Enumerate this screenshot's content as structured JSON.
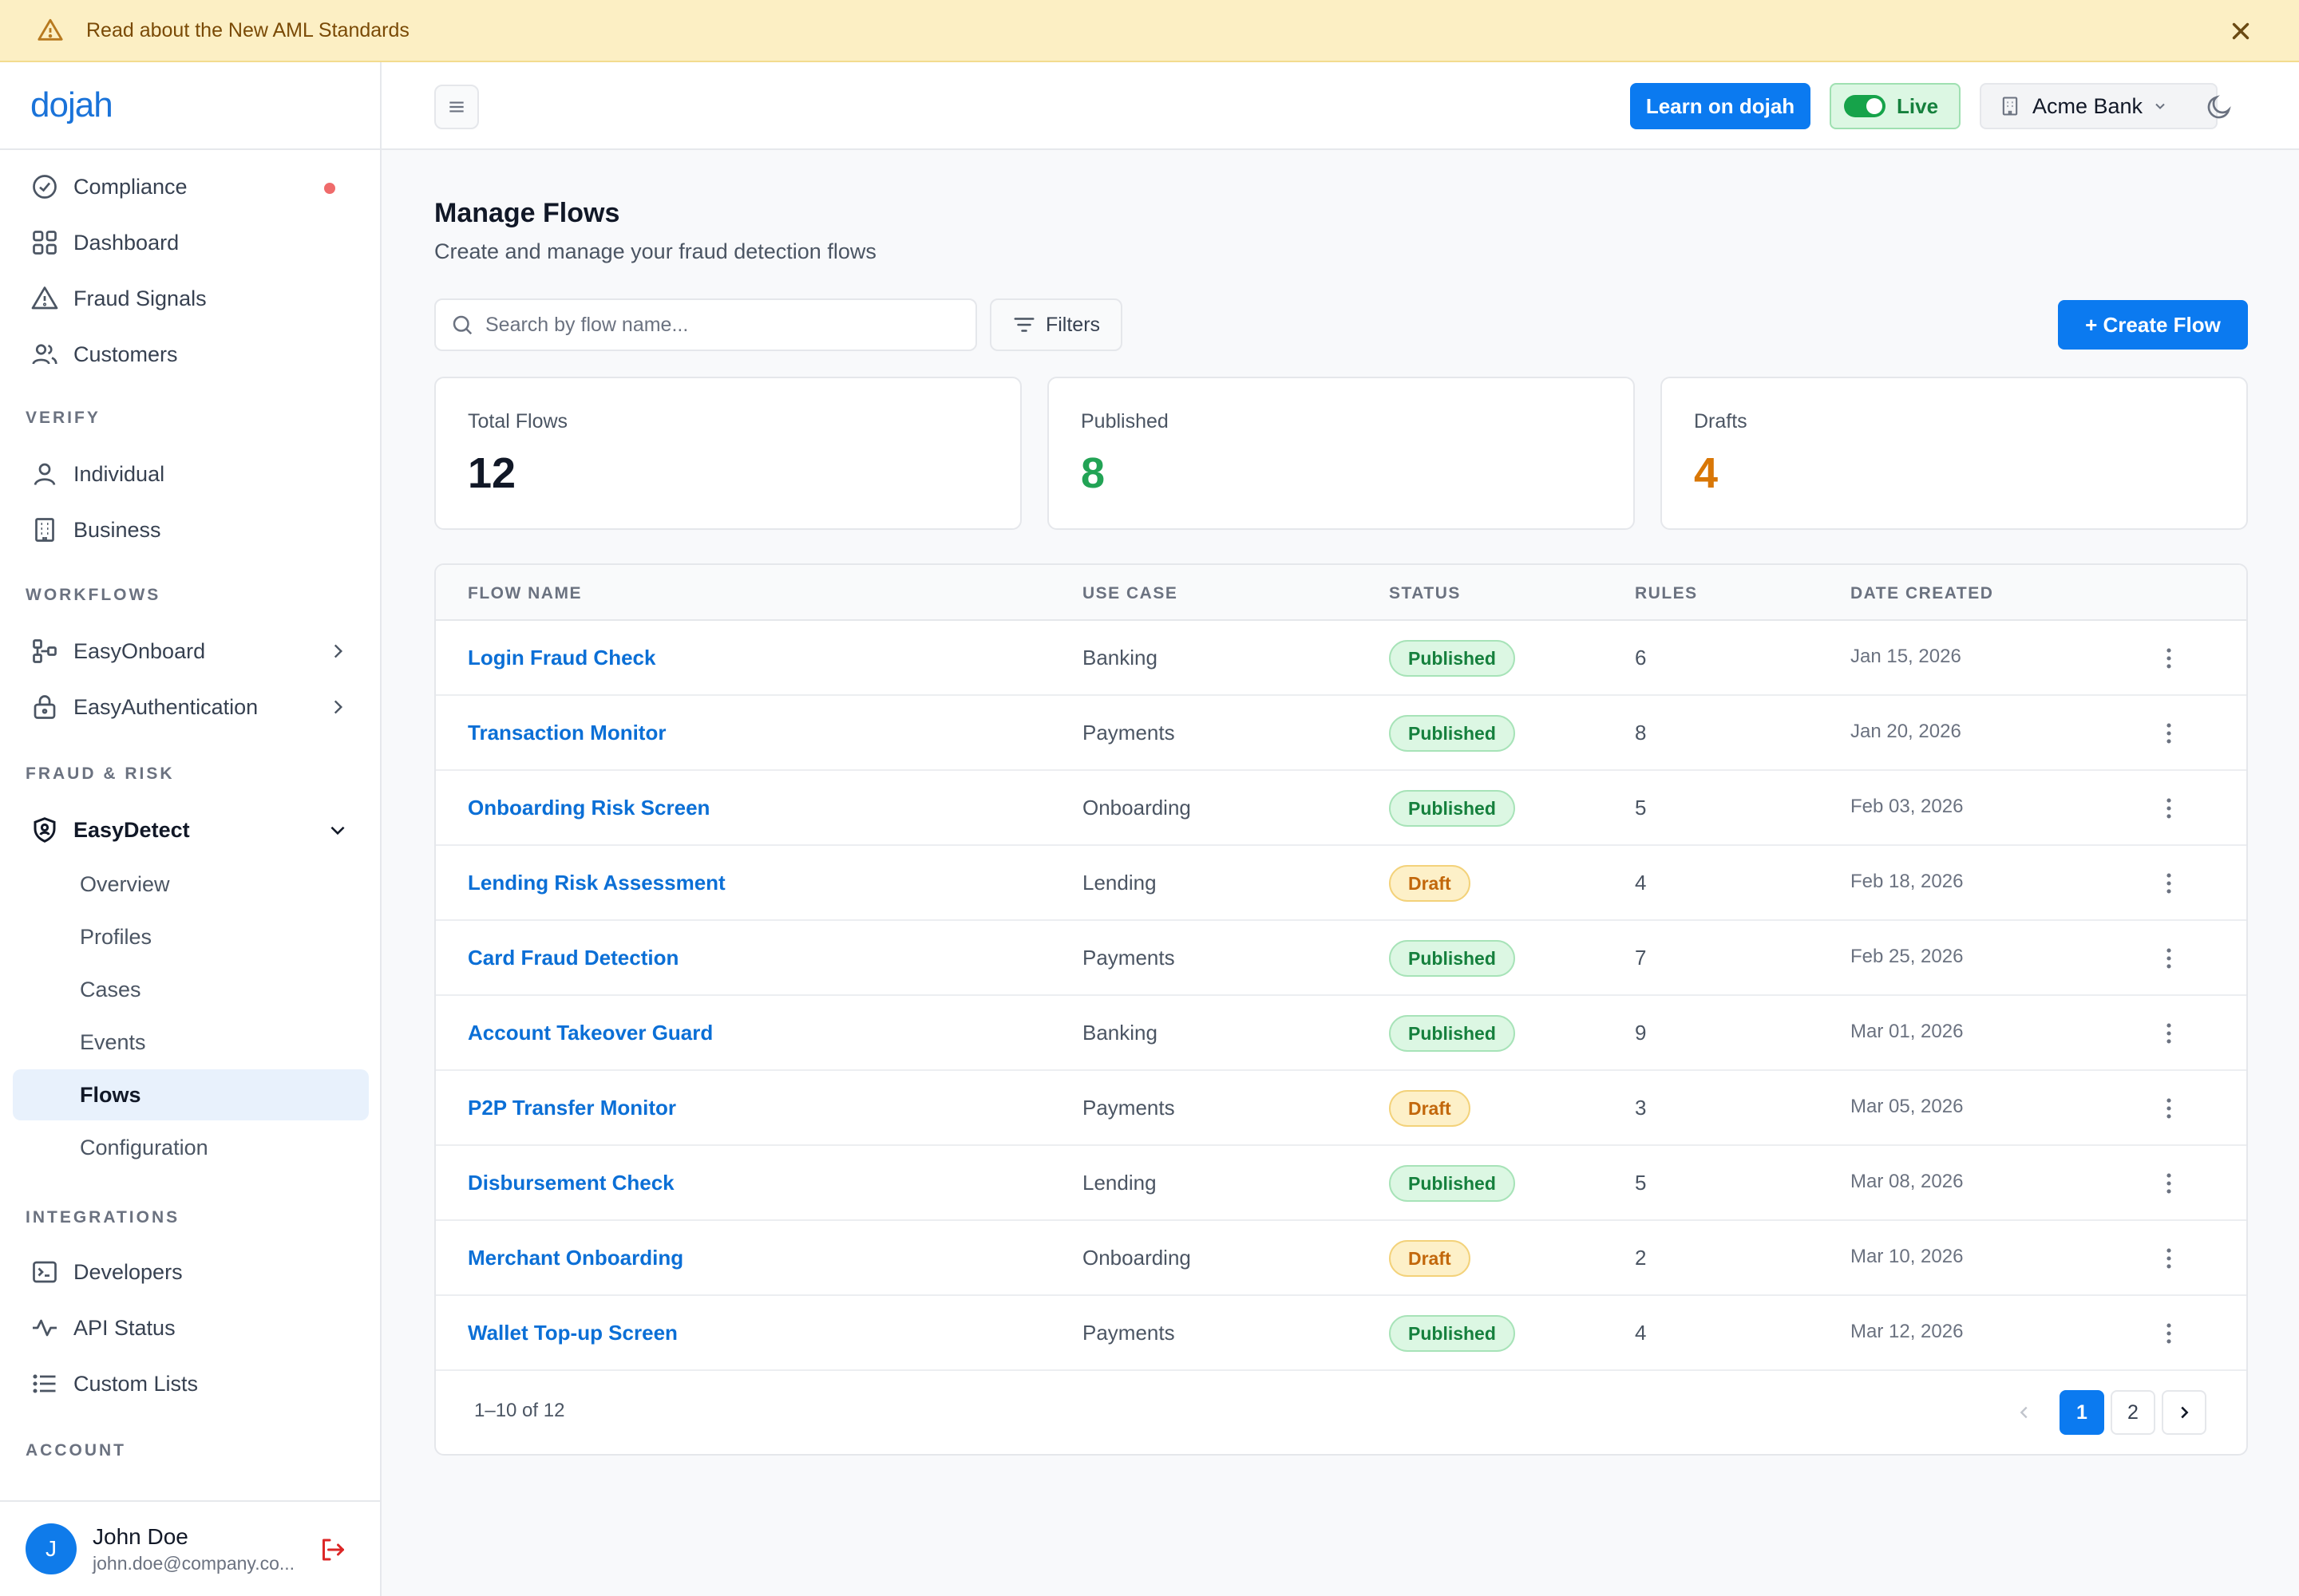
{
  "banner": {
    "text": "Read about the New AML Standards"
  },
  "brand": {
    "logo": "dojah",
    "color": "#1a73d9"
  },
  "sidebar": {
    "top_items": [
      {
        "label": "Compliance",
        "icon": "check-circle-icon"
      },
      {
        "label": "Dashboard",
        "icon": "grid-icon"
      },
      {
        "label": "Fraud Signals",
        "icon": "warning-icon"
      },
      {
        "label": "Customers",
        "icon": "users-icon"
      }
    ],
    "sections": {
      "verify": "VERIFY",
      "workflows": "WORKFLOWS",
      "fraud_risk": "FRAUD & RISK",
      "integrations": "INTEGRATIONS",
      "account": "ACCOUNT"
    },
    "verify_items": [
      {
        "label": "Individual",
        "icon": "user-icon"
      },
      {
        "label": "Business",
        "icon": "building-icon"
      }
    ],
    "workflow_items": [
      {
        "label": "EasyOnboard",
        "icon": "flow-icon"
      },
      {
        "label": "EasyAuthentication",
        "icon": "lock-icon"
      }
    ],
    "easydetect": {
      "label": "EasyDetect",
      "icon": "shield-icon"
    },
    "easydetect_children": [
      {
        "label": "Overview"
      },
      {
        "label": "Profiles"
      },
      {
        "label": "Cases"
      },
      {
        "label": "Events"
      },
      {
        "label": "Flows"
      },
      {
        "label": "Configuration"
      }
    ],
    "integration_items": [
      {
        "label": "Developers",
        "icon": "terminal-icon"
      },
      {
        "label": "API Status",
        "icon": "activity-icon"
      },
      {
        "label": "Custom Lists",
        "icon": "list-icon"
      }
    ],
    "user": {
      "initial": "J",
      "name": "John Doe",
      "email": "john.doe@company.co..."
    }
  },
  "topbar": {
    "learn_label": "Learn on dojah",
    "live_label": "Live",
    "org_name": "Acme Bank"
  },
  "page": {
    "title": "Manage Flows",
    "subtitle": "Create and manage your fraud detection flows",
    "search_placeholder": "Search by flow name...",
    "filters_label": "Filters",
    "create_label": "+ Create Flow"
  },
  "stats": [
    {
      "label": "Total Flows",
      "value": "12",
      "color": "#111827"
    },
    {
      "label": "Published",
      "value": "8",
      "color": "#22a355"
    },
    {
      "label": "Drafts",
      "value": "4",
      "color": "#d97706"
    }
  ],
  "table": {
    "columns": [
      "FLOW NAME",
      "USE CASE",
      "STATUS",
      "RULES",
      "DATE CREATED"
    ],
    "rows": [
      {
        "name": "Login Fraud Check",
        "use_case": "Banking",
        "status": "Published",
        "rules": "6",
        "date": "Jan 15, 2026"
      },
      {
        "name": "Transaction Monitor",
        "use_case": "Payments",
        "status": "Published",
        "rules": "8",
        "date": "Jan 20, 2026"
      },
      {
        "name": "Onboarding Risk Screen",
        "use_case": "Onboarding",
        "status": "Published",
        "rules": "5",
        "date": "Feb 03, 2026"
      },
      {
        "name": "Lending Risk Assessment",
        "use_case": "Lending",
        "status": "Draft",
        "rules": "4",
        "date": "Feb 18, 2026"
      },
      {
        "name": "Card Fraud Detection",
        "use_case": "Payments",
        "status": "Published",
        "rules": "7",
        "date": "Feb 25, 2026"
      },
      {
        "name": "Account Takeover Guard",
        "use_case": "Banking",
        "status": "Published",
        "rules": "9",
        "date": "Mar 01, 2026"
      },
      {
        "name": "P2P Transfer Monitor",
        "use_case": "Payments",
        "status": "Draft",
        "rules": "3",
        "date": "Mar 05, 2026"
      },
      {
        "name": "Disbursement Check",
        "use_case": "Lending",
        "status": "Published",
        "rules": "5",
        "date": "Mar 08, 2026"
      },
      {
        "name": "Merchant Onboarding",
        "use_case": "Onboarding",
        "status": "Draft",
        "rules": "2",
        "date": "Mar 10, 2026"
      },
      {
        "name": "Wallet Top-up Screen",
        "use_case": "Payments",
        "status": "Published",
        "rules": "4",
        "date": "Mar 12, 2026"
      }
    ],
    "range_text": "1–10 of 12",
    "pages": [
      "1",
      "2"
    ],
    "current_page": "1"
  }
}
